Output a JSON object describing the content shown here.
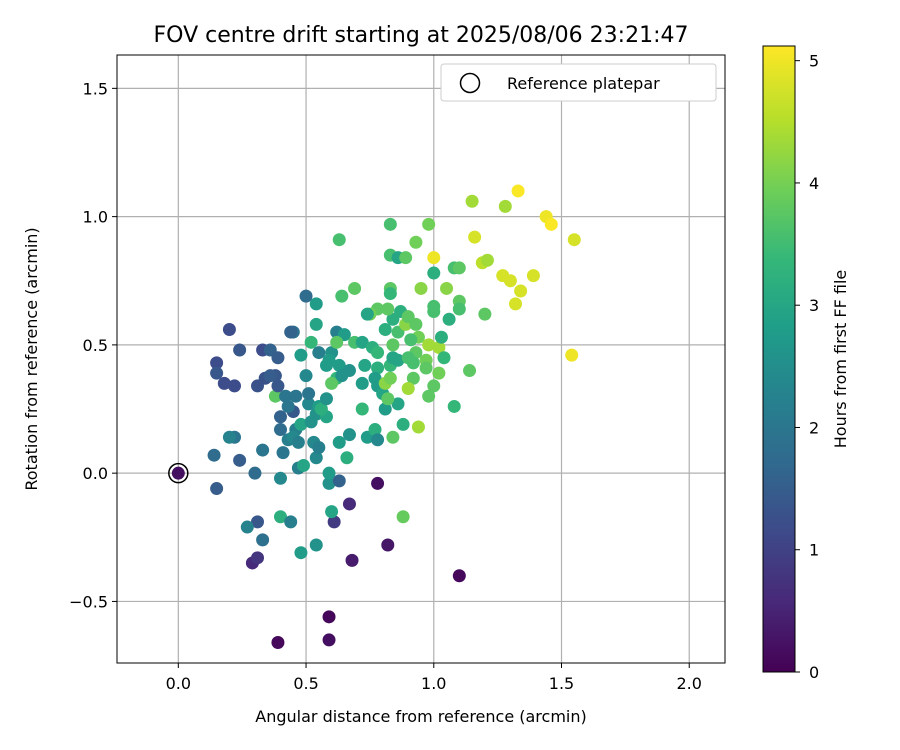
{
  "chart_data": {
    "type": "scatter",
    "title": "FOV centre drift starting at 2025/08/06 23:21:47",
    "xlabel": "Angular distance from reference (arcmin)",
    "ylabel": "Rotation from reference (arcmin)",
    "xlim": [
      -0.24,
      2.14
    ],
    "ylim": [
      -0.74,
      1.63
    ],
    "xticks": [
      0.0,
      0.5,
      1.0,
      1.5,
      2.0
    ],
    "xtick_labels": [
      "0.0",
      "0.5",
      "1.0",
      "1.5",
      "2.0"
    ],
    "yticks": [
      -0.5,
      0.0,
      0.5,
      1.0,
      1.5
    ],
    "ytick_labels": [
      "−0.5",
      "0.0",
      "0.5",
      "1.0",
      "1.5"
    ],
    "grid": true,
    "legend": {
      "position": "top-right",
      "entries": [
        "Reference platepar"
      ]
    },
    "colorbar": {
      "label": "Hours from first FF file",
      "colormap": "viridis",
      "range": [
        0,
        5.12
      ],
      "ticks": [
        0,
        1,
        2,
        3,
        4,
        5
      ],
      "tick_labels": [
        "0",
        "1",
        "2",
        "3",
        "4",
        "5"
      ]
    },
    "reference_point": {
      "x": 0.0,
      "y": 0.0,
      "c": 0.3
    },
    "points": [
      [
        0.0,
        0.0,
        0.2
      ],
      [
        0.39,
        -0.66,
        0.1
      ],
      [
        0.59,
        -0.56,
        0.1
      ],
      [
        0.59,
        -0.65,
        0.2
      ],
      [
        1.1,
        -0.4,
        0.1
      ],
      [
        0.68,
        -0.34,
        0.4
      ],
      [
        0.82,
        -0.28,
        0.3
      ],
      [
        0.78,
        -0.04,
        0.2
      ],
      [
        0.67,
        -0.12,
        0.6
      ],
      [
        0.61,
        -0.19,
        0.9
      ],
      [
        0.29,
        -0.35,
        0.6
      ],
      [
        0.31,
        -0.33,
        0.8
      ],
      [
        0.31,
        -0.19,
        1.4
      ],
      [
        0.33,
        -0.26,
        1.9
      ],
      [
        0.27,
        -0.21,
        2.3
      ],
      [
        0.15,
        -0.06,
        1.5
      ],
      [
        0.14,
        0.07,
        1.8
      ],
      [
        0.24,
        0.05,
        1.5
      ],
      [
        0.3,
        0.0,
        1.8
      ],
      [
        0.22,
        0.14,
        2.0
      ],
      [
        0.2,
        0.14,
        2.3
      ],
      [
        0.33,
        0.09,
        2.0
      ],
      [
        0.41,
        0.08,
        2.0
      ],
      [
        0.43,
        0.13,
        2.2
      ],
      [
        0.46,
        0.17,
        2.2
      ],
      [
        0.4,
        0.17,
        1.8
      ],
      [
        0.4,
        0.22,
        1.6
      ],
      [
        0.45,
        0.24,
        1.4
      ],
      [
        0.45,
        0.14,
        2.4
      ],
      [
        0.47,
        0.02,
        2.2
      ],
      [
        0.49,
        0.03,
        3.0
      ],
      [
        0.4,
        -0.02,
        2.4
      ],
      [
        0.4,
        -0.17,
        3.2
      ],
      [
        0.44,
        -0.19,
        2.2
      ],
      [
        0.48,
        -0.31,
        2.8
      ],
      [
        0.54,
        -0.28,
        2.6
      ],
      [
        0.59,
        -0.04,
        2.6
      ],
      [
        0.6,
        -0.15,
        3.0
      ],
      [
        0.59,
        0.0,
        2.8
      ],
      [
        0.54,
        0.06,
        2.4
      ],
      [
        0.63,
        -0.03,
        1.6
      ],
      [
        0.53,
        0.12,
        2.4
      ],
      [
        0.55,
        0.1,
        2.2
      ],
      [
        0.47,
        0.12,
        2.2
      ],
      [
        0.48,
        0.19,
        3.0
      ],
      [
        0.52,
        0.2,
        2.6
      ],
      [
        0.51,
        0.27,
        2.4
      ],
      [
        0.54,
        0.23,
        2.6
      ],
      [
        0.55,
        0.26,
        2.8
      ],
      [
        0.58,
        0.22,
        3.0
      ],
      [
        0.63,
        0.12,
        2.8
      ],
      [
        0.67,
        0.15,
        2.6
      ],
      [
        0.66,
        0.06,
        3.2
      ],
      [
        0.72,
        0.25,
        3.4
      ],
      [
        0.74,
        0.14,
        2.8
      ],
      [
        0.77,
        0.17,
        3.2
      ],
      [
        0.78,
        0.13,
        2.4
      ],
      [
        0.84,
        0.14,
        3.8
      ],
      [
        0.81,
        0.25,
        2.8
      ],
      [
        0.86,
        0.27,
        3.0
      ],
      [
        0.88,
        0.19,
        3.2
      ],
      [
        0.88,
        -0.17,
        3.9
      ],
      [
        0.94,
        0.18,
        4.4
      ],
      [
        0.38,
        0.3,
        3.8
      ],
      [
        0.39,
        0.34,
        1.4
      ],
      [
        0.34,
        0.37,
        1.3
      ],
      [
        0.31,
        0.34,
        1.3
      ],
      [
        0.38,
        0.38,
        1.4
      ],
      [
        0.36,
        0.38,
        1.5
      ],
      [
        0.33,
        0.48,
        1.2
      ],
      [
        0.36,
        0.48,
        1.6
      ],
      [
        0.39,
        0.45,
        1.5
      ],
      [
        0.45,
        0.55,
        1.9
      ],
      [
        0.48,
        0.46,
        2.8
      ],
      [
        0.5,
        0.69,
        1.8
      ],
      [
        0.54,
        0.66,
        2.8
      ],
      [
        0.54,
        0.58,
        3.0
      ],
      [
        0.52,
        0.51,
        3.4
      ],
      [
        0.55,
        0.47,
        2.2
      ],
      [
        0.6,
        0.47,
        2.6
      ],
      [
        0.59,
        0.44,
        2.8
      ],
      [
        0.58,
        0.42,
        2.8
      ],
      [
        0.62,
        0.55,
        2.2
      ],
      [
        0.65,
        0.54,
        2.8
      ],
      [
        0.62,
        0.51,
        3.8
      ],
      [
        0.63,
        0.42,
        2.8
      ],
      [
        0.62,
        0.37,
        3.4
      ],
      [
        0.6,
        0.35,
        3.8
      ],
      [
        0.64,
        0.38,
        2.6
      ],
      [
        0.67,
        0.4,
        2.6
      ],
      [
        0.69,
        0.51,
        3.6
      ],
      [
        0.72,
        0.51,
        3.0
      ],
      [
        0.73,
        0.42,
        3.0
      ],
      [
        0.72,
        0.35,
        2.8
      ],
      [
        0.76,
        0.49,
        3.2
      ],
      [
        0.78,
        0.47,
        3.4
      ],
      [
        0.78,
        0.41,
        3.2
      ],
      [
        0.77,
        0.37,
        2.8
      ],
      [
        0.78,
        0.34,
        2.8
      ],
      [
        0.8,
        0.31,
        3.0
      ],
      [
        0.82,
        0.29,
        3.8
      ],
      [
        0.81,
        0.35,
        4.2
      ],
      [
        0.83,
        0.37,
        4.0
      ],
      [
        0.83,
        0.42,
        3.4
      ],
      [
        0.84,
        0.45,
        3.0
      ],
      [
        0.86,
        0.44,
        3.0
      ],
      [
        0.84,
        0.5,
        3.8
      ],
      [
        0.86,
        0.55,
        3.6
      ],
      [
        0.84,
        0.6,
        3.2
      ],
      [
        0.81,
        0.56,
        3.2
      ],
      [
        0.82,
        0.64,
        3.8
      ],
      [
        0.78,
        0.64,
        3.8
      ],
      [
        0.75,
        0.62,
        4.0
      ],
      [
        0.74,
        0.62,
        3.0
      ],
      [
        0.69,
        0.72,
        3.8
      ],
      [
        0.64,
        0.69,
        3.6
      ],
      [
        0.63,
        0.91,
        3.6
      ],
      [
        0.83,
        0.72,
        3.8
      ],
      [
        0.83,
        0.7,
        3.4
      ],
      [
        0.83,
        0.85,
        3.6
      ],
      [
        0.83,
        0.97,
        3.6
      ],
      [
        0.86,
        0.84,
        3.0
      ],
      [
        0.89,
        0.84,
        3.8
      ],
      [
        0.93,
        0.9,
        4.0
      ],
      [
        0.98,
        0.97,
        4.0
      ],
      [
        1.0,
        0.84,
        5.0
      ],
      [
        1.0,
        0.78,
        3.2
      ],
      [
        0.87,
        0.63,
        3.2
      ],
      [
        0.89,
        0.58,
        4.2
      ],
      [
        0.9,
        0.61,
        3.8
      ],
      [
        0.93,
        0.58,
        3.8
      ],
      [
        0.94,
        0.53,
        4.0
      ],
      [
        0.91,
        0.52,
        3.6
      ],
      [
        0.93,
        0.47,
        3.8
      ],
      [
        0.9,
        0.45,
        3.6
      ],
      [
        0.92,
        0.43,
        3.6
      ],
      [
        0.92,
        0.37,
        3.8
      ],
      [
        0.9,
        0.33,
        4.4
      ],
      [
        0.97,
        0.44,
        4.0
      ],
      [
        0.98,
        0.5,
        4.4
      ],
      [
        0.97,
        0.41,
        3.8
      ],
      [
        0.98,
        0.3,
        3.8
      ],
      [
        1.0,
        0.34,
        3.8
      ],
      [
        1.02,
        0.49,
        4.4
      ],
      [
        1.02,
        0.39,
        4.0
      ],
      [
        1.04,
        0.45,
        3.4
      ],
      [
        1.03,
        0.53,
        3.2
      ],
      [
        1.06,
        0.6,
        3.2
      ],
      [
        1.0,
        0.63,
        3.6
      ],
      [
        1.0,
        0.65,
        3.6
      ],
      [
        0.95,
        0.72,
        4.2
      ],
      [
        1.05,
        0.72,
        4.2
      ],
      [
        1.08,
        0.8,
        3.6
      ],
      [
        1.1,
        0.8,
        3.8
      ],
      [
        1.1,
        0.67,
        3.8
      ],
      [
        1.1,
        0.64,
        3.6
      ],
      [
        1.08,
        0.26,
        3.4
      ],
      [
        1.14,
        0.4,
        3.8
      ],
      [
        1.16,
        0.92,
        4.8
      ],
      [
        1.15,
        1.06,
        4.4
      ],
      [
        1.19,
        0.82,
        4.6
      ],
      [
        1.21,
        0.83,
        4.4
      ],
      [
        1.2,
        0.62,
        3.8
      ],
      [
        1.27,
        0.77,
        4.8
      ],
      [
        1.3,
        0.75,
        4.8
      ],
      [
        1.28,
        1.04,
        4.4
      ],
      [
        1.32,
        0.66,
        4.8
      ],
      [
        1.34,
        0.71,
        4.8
      ],
      [
        1.33,
        1.1,
        5.1
      ],
      [
        1.39,
        0.77,
        4.8
      ],
      [
        1.44,
        1.0,
        5.0
      ],
      [
        1.46,
        0.97,
        5.1
      ],
      [
        1.55,
        0.91,
        4.8
      ],
      [
        1.54,
        0.46,
        5.0
      ],
      [
        0.2,
        0.56,
        1.2
      ],
      [
        0.24,
        0.48,
        1.4
      ],
      [
        0.15,
        0.43,
        1.2
      ],
      [
        0.15,
        0.39,
        1.4
      ],
      [
        0.18,
        0.35,
        1.2
      ],
      [
        0.22,
        0.34,
        1.2
      ],
      [
        0.44,
        0.55,
        1.6
      ],
      [
        0.46,
        0.3,
        2.0
      ],
      [
        0.5,
        0.38,
        2.4
      ],
      [
        0.51,
        0.31,
        2.0
      ],
      [
        0.42,
        0.3,
        2.0
      ],
      [
        0.43,
        0.26,
        2.0
      ],
      [
        0.56,
        0.25,
        3.2
      ],
      [
        0.58,
        0.29,
        2.6
      ]
    ]
  }
}
